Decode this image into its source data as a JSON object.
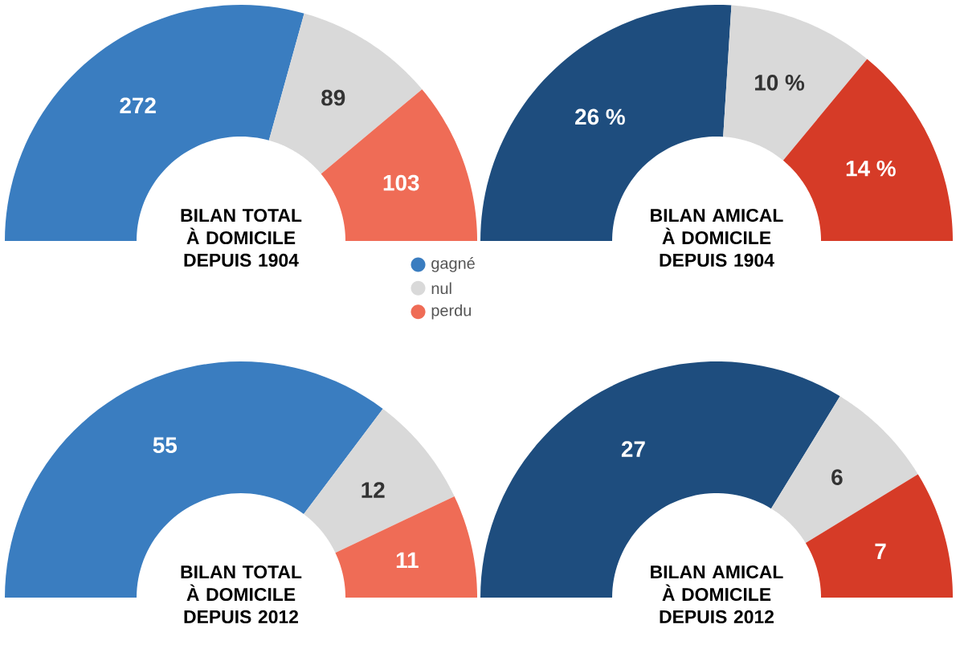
{
  "chart_data": [
    {
      "type": "donut",
      "title": "BILAN TOTAL À DOMICILE DEPUIS 1904",
      "categories": [
        "gagné",
        "nul",
        "perdu"
      ],
      "values": [
        272,
        89,
        103
      ],
      "colors": [
        "#3a7dc0",
        "#d9d9d9",
        "#ef6c56"
      ],
      "data_labels": true,
      "legend": "bottom right"
    },
    {
      "type": "donut",
      "title": "BILAN AMICAL À DOMICILE DEPUIS 1904",
      "categories": [
        null,
        null,
        null
      ],
      "values": [
        26,
        10,
        14
      ],
      "value_labels": [
        "26 %",
        "10 %",
        "14 %"
      ],
      "colors": [
        "#1e4d7e",
        "#d9d9d9",
        "#d63b27"
      ]
    },
    {
      "type": "donut",
      "title": "BILAN TOTAL À DOMICILE DEPUIS 2012",
      "categories": [
        null,
        null,
        null
      ],
      "values": [
        55,
        12,
        11
      ],
      "colors": [
        "#3a7dc0",
        "#d9d9d9",
        "#ef6c56"
      ],
      "data_labels": true
    },
    {
      "type": "donut",
      "title": "BILAN AMICAL À DOMICILE DEPUIS 2012",
      "categories": [
        null,
        null,
        null
      ],
      "values": [
        27,
        6,
        7
      ],
      "colors": [
        "#1e4d7e",
        "#d9d9d9",
        "#d63b27"
      ],
      "data_labels": true
    }
  ]
}
